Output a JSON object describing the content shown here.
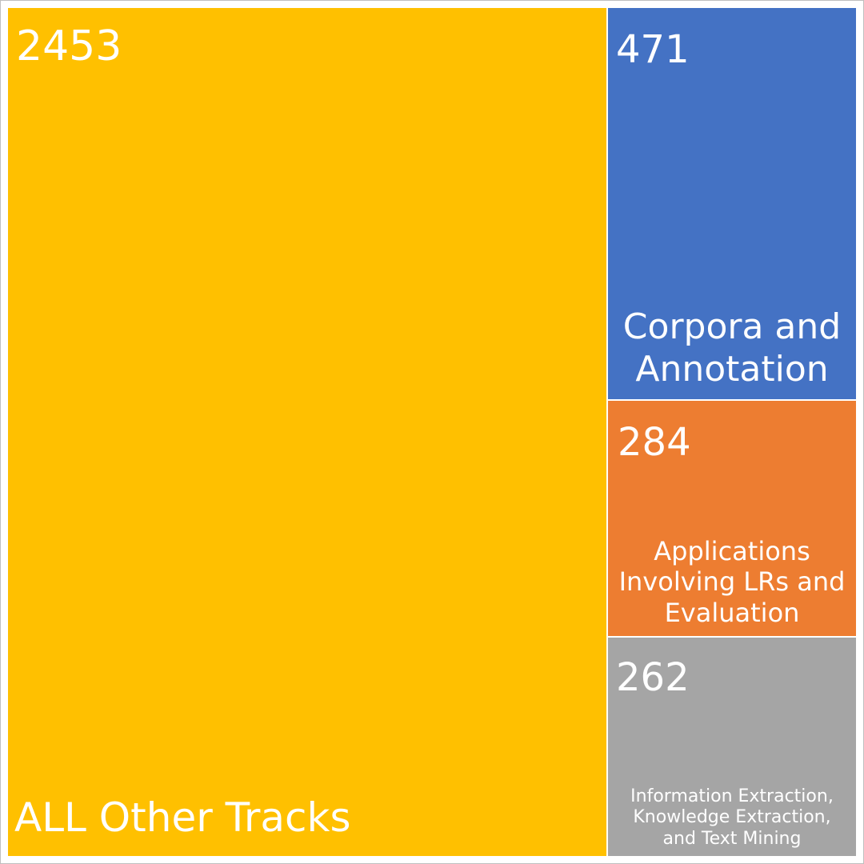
{
  "chart_data": {
    "type": "treemap",
    "title": "",
    "items": [
      {
        "label": "ALL Other Tracks",
        "value": 2453,
        "color": "#FFC000"
      },
      {
        "label": "Corpora and\nAnnotation",
        "value": 471,
        "color": "#4472C4"
      },
      {
        "label": "Applications\nInvolving LRs and\nEvaluation",
        "value": 284,
        "color": "#ED7D31"
      },
      {
        "label": "Information Extraction,\nKnowledge Extraction,\nand Text Mining",
        "value": 262,
        "color": "#A5A5A5"
      }
    ]
  }
}
